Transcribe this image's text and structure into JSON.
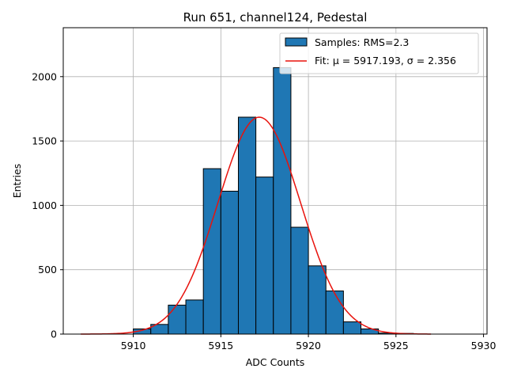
{
  "chart_data": {
    "type": "bar",
    "title": "Run 651, channel124, Pedestal",
    "xlabel": "ADC Counts",
    "ylabel": "Entries",
    "xlim": [
      5906,
      5930.2
    ],
    "ylim": [
      0,
      2380
    ],
    "xticks": [
      5910,
      5915,
      5920,
      5925,
      5930
    ],
    "yticks": [
      0,
      500,
      1000,
      1500,
      2000
    ],
    "grid": true,
    "legend_position": "top-right",
    "colors": {
      "bars": "#1f77b4",
      "fit": "#e8120c"
    },
    "histogram": {
      "name": "Samples: RMS=2.3",
      "bin_width": 1,
      "bin_left_edges": [
        5910,
        5911,
        5912,
        5913,
        5914,
        5915,
        5916,
        5917,
        5918,
        5919,
        5920,
        5921,
        5922,
        5923,
        5924,
        5925
      ],
      "counts": [
        40,
        75,
        225,
        265,
        1285,
        1110,
        1685,
        1220,
        2070,
        830,
        530,
        335,
        95,
        40,
        8,
        5
      ]
    },
    "fit": {
      "name": "Fit: μ = 5917.193, σ = 2.356",
      "mu": 5917.193,
      "sigma": 2.356,
      "amplitude": 1685,
      "x_range": [
        5907,
        5927
      ]
    }
  }
}
